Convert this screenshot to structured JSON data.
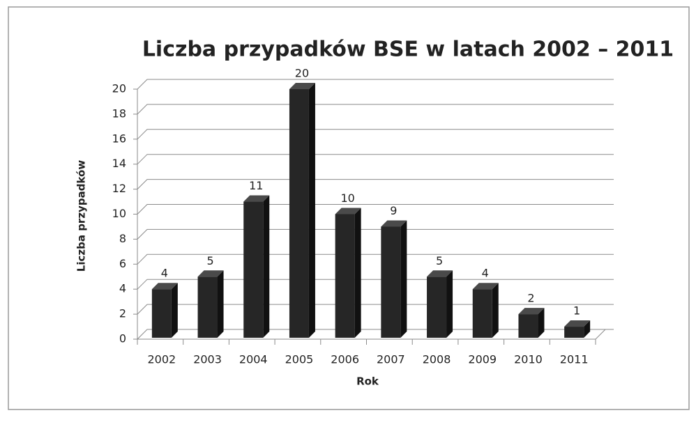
{
  "chart_data": {
    "type": "bar3d",
    "title": "Liczba przypadków BSE w latach 2002 – 2011",
    "x_label": "Rok",
    "y_label": "Liczba przypadków",
    "categories": [
      "2002",
      "2003",
      "2004",
      "2005",
      "2006",
      "2007",
      "2008",
      "2009",
      "2010",
      "2011"
    ],
    "values": [
      4,
      5,
      11,
      20,
      10,
      9,
      5,
      4,
      2,
      1
    ],
    "color": "#262626",
    "ylim": [
      0,
      20
    ],
    "yticks": [
      0,
      2,
      4,
      6,
      8,
      10,
      12,
      14,
      16,
      18,
      20
    ],
    "grid": true
  }
}
